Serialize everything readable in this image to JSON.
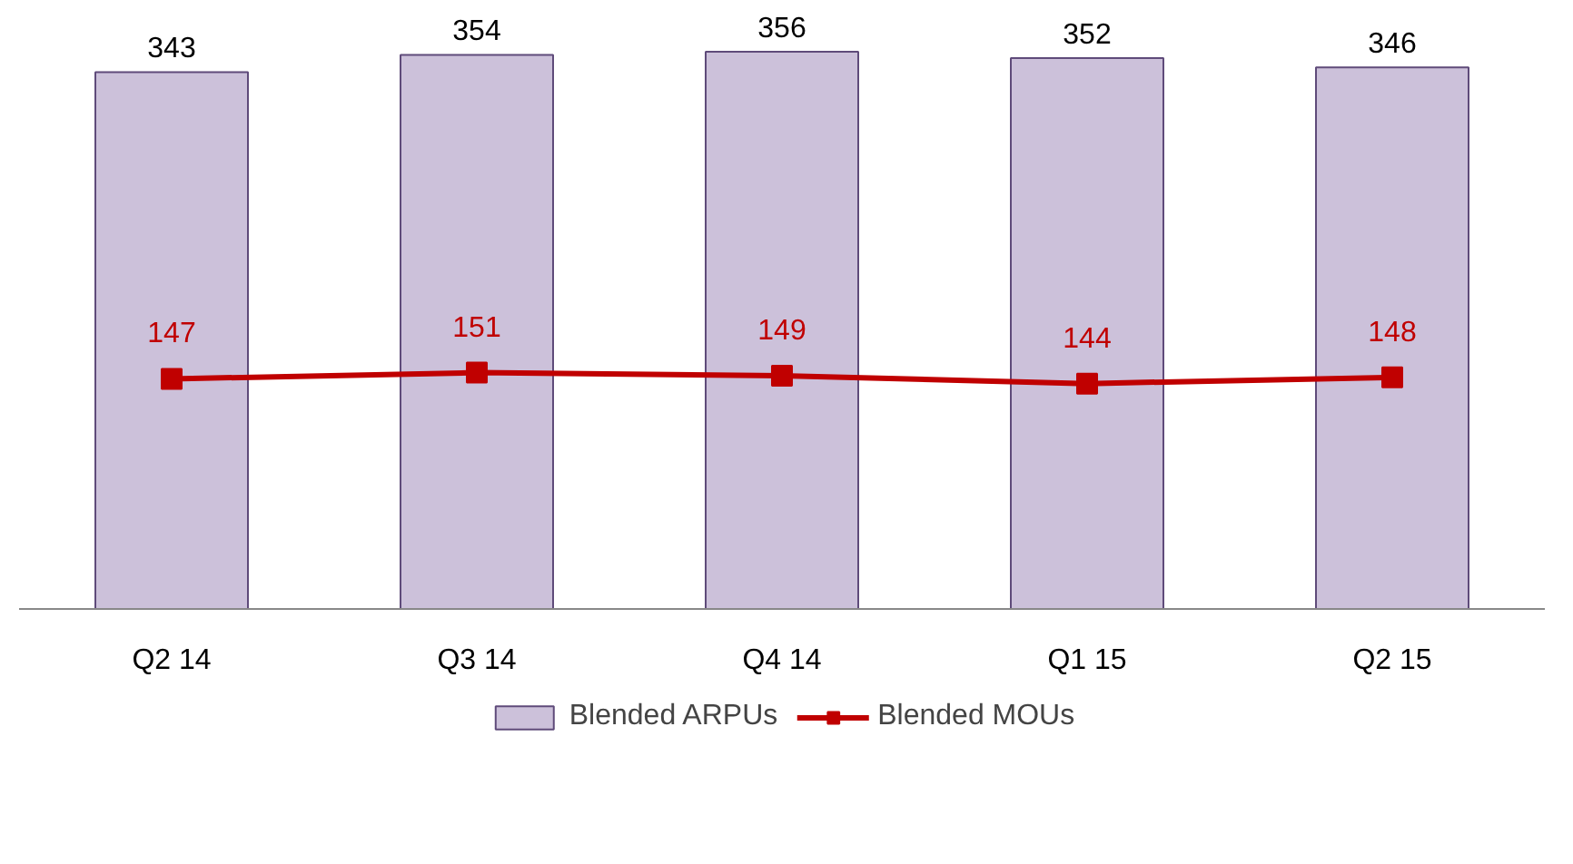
{
  "chart_data": {
    "type": "bar",
    "categories": [
      "Q2 14",
      "Q3 14",
      "Q4 14",
      "Q1 15",
      "Q2 15"
    ],
    "series": [
      {
        "name": "Blended ARPUs",
        "color": "#ccc1da",
        "values": [
          343,
          354,
          356,
          352,
          346
        ]
      },
      {
        "name": "Blended MOUs",
        "type": "line",
        "color": "#c00000",
        "marker": "square",
        "values": [
          147,
          151,
          149,
          144,
          148
        ]
      }
    ],
    "tick_labels": "x",
    "data_labels": true,
    "legend": "bottom"
  }
}
